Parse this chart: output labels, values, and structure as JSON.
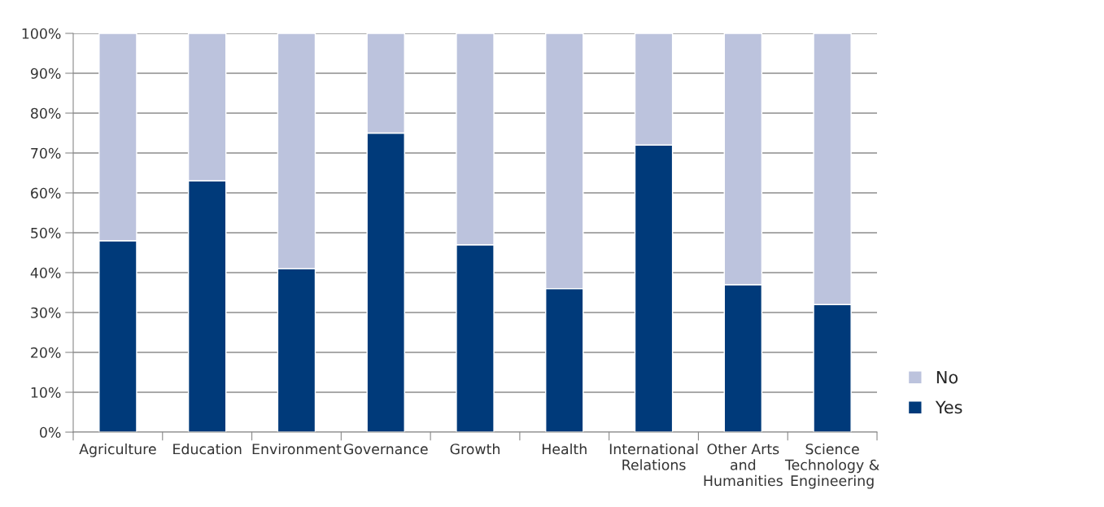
{
  "chart_data": {
    "type": "bar",
    "stacked": true,
    "categories": [
      "Agriculture",
      "Education",
      "Environment",
      "Governance",
      "Growth",
      "Health",
      "International\nRelations",
      "Other Arts\nand\nHumanities",
      "Science\nTechnology &\nEngineering"
    ],
    "series": [
      {
        "name": "Yes",
        "color": "#003a7a",
        "values": [
          48,
          63,
          41,
          75,
          47,
          36,
          72,
          37,
          32
        ]
      },
      {
        "name": "No",
        "color": "#bcc3dd",
        "values": [
          52,
          37,
          59,
          25,
          53,
          64,
          28,
          63,
          68
        ]
      }
    ],
    "ylim": [
      0,
      100
    ],
    "yticks": [
      {
        "value": 0,
        "label": "0%"
      },
      {
        "value": 10,
        "label": "10%"
      },
      {
        "value": 20,
        "label": "20%"
      },
      {
        "value": 30,
        "label": "30%"
      },
      {
        "value": 40,
        "label": "40%"
      },
      {
        "value": 50,
        "label": "50%"
      },
      {
        "value": 60,
        "label": "60%"
      },
      {
        "value": 70,
        "label": "70%"
      },
      {
        "value": 80,
        "label": "80%"
      },
      {
        "value": 90,
        "label": "90%"
      },
      {
        "value": 100,
        "label": "100%"
      }
    ],
    "grid": "y",
    "legend": "bottom right"
  }
}
